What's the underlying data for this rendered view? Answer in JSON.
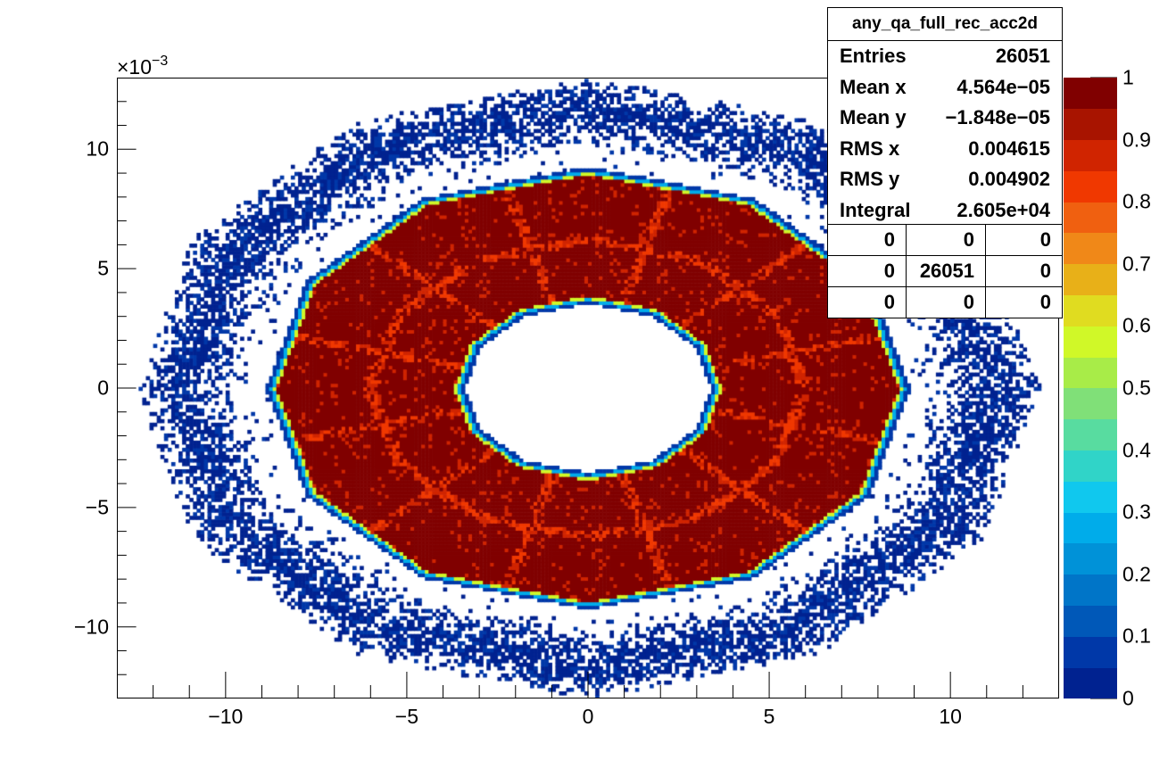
{
  "chart_data": {
    "type": "heatmap",
    "title": "any_qa_full_rec_acc2d",
    "xlabel": "",
    "ylabel": "",
    "axis_multiplier": "×10",
    "axis_multiplier_exponent": "−3",
    "xlim": [
      -13,
      13
    ],
    "ylim": [
      -13,
      13
    ],
    "x_ticks": [
      "−10",
      "−5",
      "0",
      "5",
      "10"
    ],
    "x_tick_values": [
      -10,
      -5,
      0,
      5,
      10
    ],
    "y_ticks": [
      "10",
      "5",
      "0",
      "−5",
      "−10"
    ],
    "y_tick_values": [
      10,
      5,
      0,
      -5,
      -10
    ],
    "z_range": [
      0,
      1
    ],
    "z_ticks": [
      "1",
      "0.9",
      "0.8",
      "0.7",
      "0.6",
      "0.5",
      "0.4",
      "0.3",
      "0.2",
      "0.1",
      "0"
    ],
    "z_tick_values": [
      1,
      0.9,
      0.8,
      0.7,
      0.6,
      0.5,
      0.4,
      0.3,
      0.2,
      0.1,
      0
    ],
    "structure": {
      "inner_hole_radius": 3.4,
      "dense_ring_outer_radius": 8.9,
      "halo_ring_inner_radius": 9.6,
      "halo_ring_outer_radius": 12.5,
      "polygon_sides": 12,
      "dense_value": 1.0,
      "halo_value": 0.05
    },
    "palette": [
      "#002290",
      "#0038a8",
      "#0058b8",
      "#0075c8",
      "#0092d8",
      "#00acea",
      "#10c8ee",
      "#30d4c8",
      "#58dca0",
      "#80e078",
      "#a8ec48",
      "#d0f828",
      "#e0dc20",
      "#e8b018",
      "#f08818",
      "#f06010",
      "#f03800",
      "#d02400",
      "#a81400",
      "#800000"
    ],
    "stats": {
      "name": "any_qa_full_rec_acc2d",
      "rows": [
        {
          "label": "Entries",
          "value": "26051"
        },
        {
          "label": "Mean x",
          "value": "4.564e−05"
        },
        {
          "label": "Mean y",
          "value": "−1.848e−05"
        },
        {
          "label": "RMS x",
          "value": "0.004615"
        },
        {
          "label": "RMS y",
          "value": "0.004902"
        },
        {
          "label": "Integral",
          "value": "2.605e+04"
        }
      ],
      "overflow_table": [
        [
          "0",
          "0",
          "0"
        ],
        [
          "0",
          "26051",
          "0"
        ],
        [
          "0",
          "0",
          "0"
        ]
      ]
    }
  }
}
